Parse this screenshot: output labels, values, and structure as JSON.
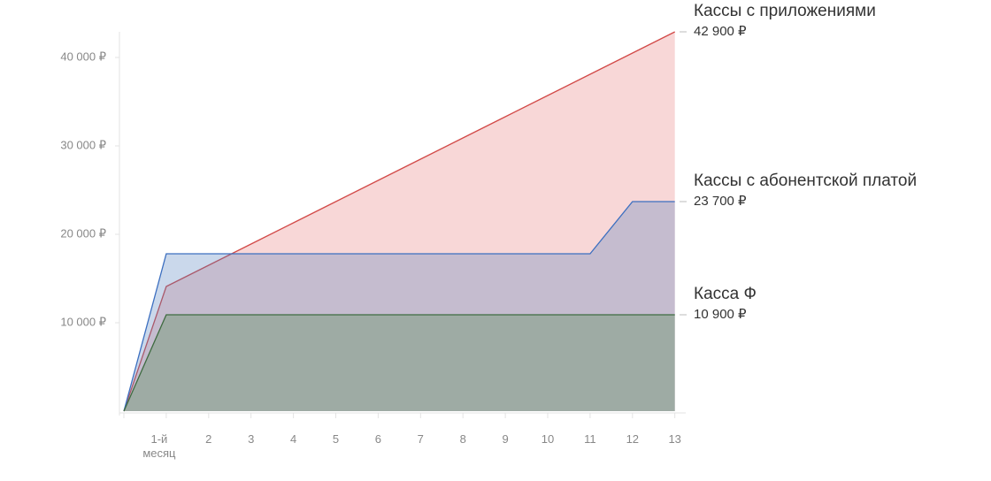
{
  "chart_data": {
    "type": "area",
    "categories": [
      null,
      "1-й месяц",
      "2",
      "3",
      "4",
      "5",
      "6",
      "7",
      "8",
      "9",
      "10",
      "11",
      "12",
      "13"
    ],
    "series": [
      {
        "name": "Кассы с приложениями",
        "color": "#d24a48",
        "fill": "rgba(232,130,130,0.32)",
        "values": [
          0,
          14100,
          16500,
          18900,
          21300,
          23700,
          26100,
          28500,
          30900,
          33300,
          35700,
          38100,
          40500,
          42900
        ],
        "value_labels": [
          null,
          null,
          null,
          null,
          null,
          null,
          null,
          null,
          null,
          null,
          null,
          null,
          null,
          "42 900 ₽"
        ]
      },
      {
        "name": "Кассы с абонентской платой",
        "color": "#3c6fc0",
        "fill": "rgba(80,125,190,0.3)",
        "values": [
          0,
          17800,
          17800,
          17800,
          17800,
          17800,
          17800,
          17800,
          17800,
          17800,
          17800,
          17800,
          23700,
          23700
        ],
        "value_labels": [
          null,
          null,
          null,
          null,
          null,
          null,
          null,
          null,
          null,
          null,
          null,
          null,
          null,
          "23 700 ₽"
        ]
      },
      {
        "name": "Касса Ф",
        "color": "#3e6b40",
        "fill": "rgba(110,150,110,0.45)",
        "values": [
          0,
          10900,
          10900,
          10900,
          10900,
          10900,
          10900,
          10900,
          10900,
          10900,
          10900,
          10900,
          10900,
          10900
        ],
        "value_labels": [
          null,
          null,
          null,
          null,
          null,
          null,
          null,
          null,
          null,
          null,
          null,
          null,
          null,
          "10 900 ₽"
        ]
      }
    ],
    "ylim": [
      0,
      43000
    ],
    "yticks": [
      {
        "value": 10000,
        "label": "10 000 ₽"
      },
      {
        "value": 20000,
        "label": "20 000 ₽"
      },
      {
        "value": 30000,
        "label": "30 000 ₽"
      },
      {
        "value": 40000,
        "label": "40 000 ₽"
      }
    ],
    "grid": true
  }
}
